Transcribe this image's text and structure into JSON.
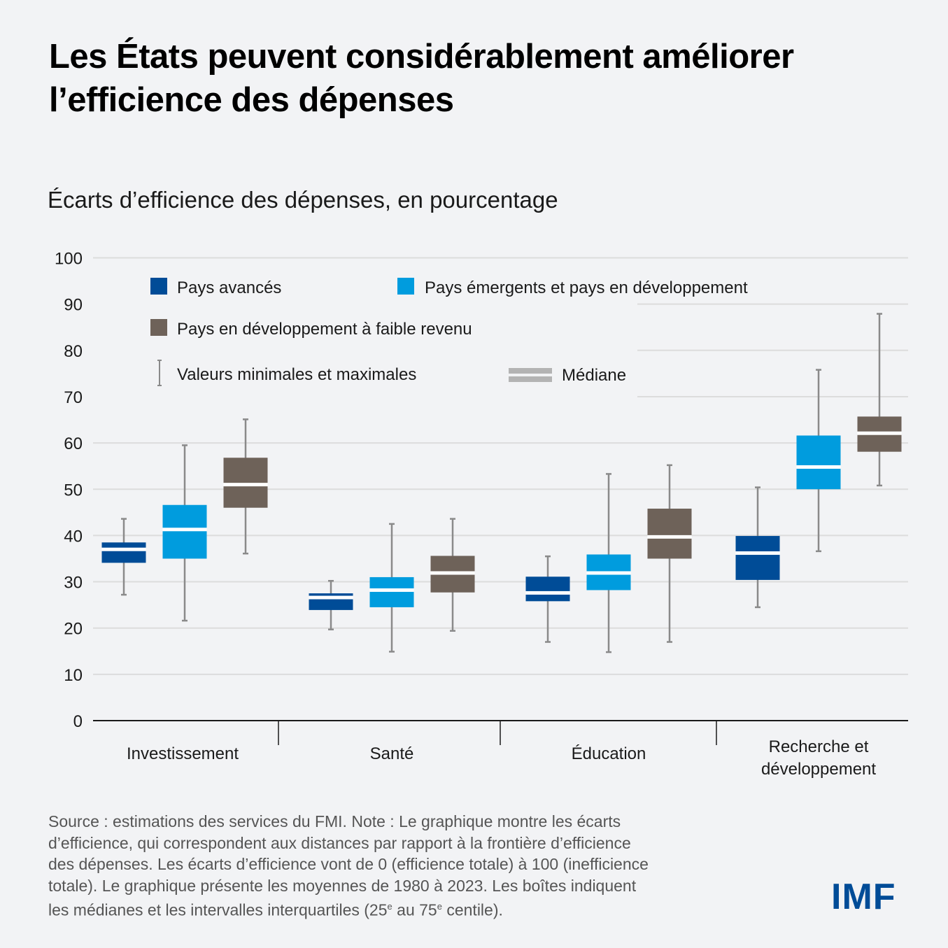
{
  "header": {
    "title": "Les États peuvent considérablement améliorer l’efficience des dépenses",
    "subtitle": "Écarts d’efficience des dépenses, en pourcentage"
  },
  "colors": {
    "advanced": "#004C97",
    "emerging": "#009CDE",
    "low_income": "#6E6259",
    "whisker": "#8A8A8A",
    "median": "#FFFFFF",
    "grid": "#DCDCDC",
    "axis": "#1a1a1a",
    "logo": "#004C97"
  },
  "legend": {
    "advanced": "Pays avancés",
    "emerging": "Pays émergents et pays en développement",
    "low_income": "Pays en développement à faible revenu",
    "minmax": "Valeurs minimales et maximales",
    "median": "Médiane"
  },
  "chart_data": {
    "type": "boxplot",
    "title": "Écarts d’efficience des dépenses, en pourcentage",
    "xlabel": "",
    "ylabel": "",
    "ylim": [
      0,
      100
    ],
    "yticks": [
      0,
      10,
      20,
      30,
      40,
      50,
      60,
      70,
      80,
      90,
      100
    ],
    "grid": true,
    "legend_position": "top-left (inside plot)",
    "categories": [
      "Investissement",
      "Santé",
      "Éducation",
      "Recherche et développement"
    ],
    "category_label_lines": [
      [
        "Investissement"
      ],
      [
        "Santé"
      ],
      [
        "Éducation"
      ],
      [
        "Recherche et",
        "développement"
      ]
    ],
    "series": [
      {
        "name": "Pays avancés",
        "key": "advanced",
        "boxes": [
          {
            "min": 27.2,
            "q1": 34.1,
            "median": 37.0,
            "q3": 38.5,
            "max": 43.6
          },
          {
            "min": 19.7,
            "q1": 23.9,
            "median": 26.6,
            "q3": 27.5,
            "max": 30.2
          },
          {
            "min": 17.0,
            "q1": 25.8,
            "median": 27.6,
            "q3": 31.1,
            "max": 35.5
          },
          {
            "min": 24.5,
            "q1": 30.4,
            "median": 36.2,
            "q3": 39.9,
            "max": 50.4
          }
        ]
      },
      {
        "name": "Pays émergents et pays en développement",
        "key": "emerging",
        "boxes": [
          {
            "min": 21.6,
            "q1": 35.0,
            "median": 41.3,
            "q3": 46.6,
            "max": 59.5
          },
          {
            "min": 14.9,
            "q1": 24.5,
            "median": 28.2,
            "q3": 31.0,
            "max": 42.5
          },
          {
            "min": 14.8,
            "q1": 28.2,
            "median": 31.9,
            "q3": 35.9,
            "max": 53.3
          },
          {
            "min": 36.6,
            "q1": 50.0,
            "median": 54.8,
            "q3": 61.6,
            "max": 75.8
          }
        ]
      },
      {
        "name": "Pays en développement à faible revenu",
        "key": "low_income",
        "boxes": [
          {
            "min": 36.1,
            "q1": 46.0,
            "median": 51.0,
            "q3": 56.8,
            "max": 65.1
          },
          {
            "min": 19.4,
            "q1": 27.7,
            "median": 31.9,
            "q3": 35.6,
            "max": 43.6
          },
          {
            "min": 17.0,
            "q1": 35.0,
            "median": 39.7,
            "q3": 45.8,
            "max": 55.2
          },
          {
            "min": 50.8,
            "q1": 58.1,
            "median": 62.1,
            "q3": 65.7,
            "max": 87.9
          }
        ]
      }
    ]
  },
  "footer": {
    "note_lines": [
      "Source : estimations des services du FMI. Note : Le graphique montre les écarts",
      "d’efficience, qui correspondent aux distances par rapport à la frontière d’efficience",
      "des dépenses. Les écarts d’efficience vont de 0 (efficience totale) à 100 (inefficience",
      "totale). Le graphique présente les moyennes de 1980 à 2023. Les boîtes indiquent"
    ],
    "note_last_parts": [
      "les médianes et les intervalles interquartiles (25",
      "e",
      " au 75",
      "e",
      " centile)."
    ],
    "logo": "IMF"
  }
}
